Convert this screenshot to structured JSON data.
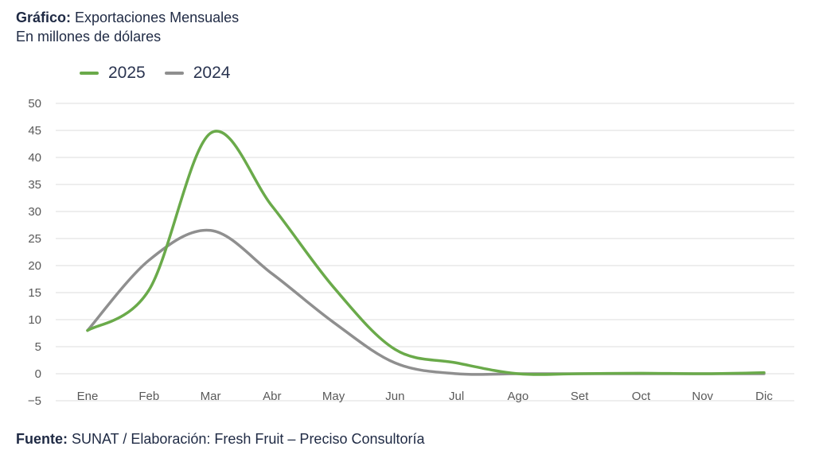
{
  "header": {
    "title_bold": "Gráfico:",
    "title_rest": " Exportaciones Mensuales",
    "subtitle": "En millones de dólares"
  },
  "footer": {
    "label_bold": "Fuente:",
    "text": " SUNAT / Elaboración: Fresh Fruit – Preciso Consultoría"
  },
  "chart_data": {
    "type": "line",
    "title": "Exportaciones Mensuales",
    "subtitle": "En millones de dólares",
    "categories": [
      "Ene",
      "Feb",
      "Mar",
      "Abr",
      "May",
      "Jun",
      "Jul",
      "Ago",
      "Set",
      "Oct",
      "Nov",
      "Dic"
    ],
    "series": [
      {
        "name": "2025",
        "color": "#6aaa4a",
        "values": [
          8,
          15.5,
          44.5,
          31,
          16,
          4.5,
          2,
          0,
          0,
          0.1,
          0,
          0.2
        ]
      },
      {
        "name": "2024",
        "color": "#8f8f8f",
        "values": [
          8,
          21,
          26.5,
          18.5,
          9.5,
          2,
          0,
          0,
          0,
          0,
          0,
          0
        ]
      }
    ],
    "yticks": [
      "50",
      "45",
      "40",
      "35",
      "30",
      "25",
      "20",
      "15",
      "10",
      "5",
      "0",
      "−5"
    ],
    "ylim": [
      -5,
      50
    ],
    "grid": true,
    "legend": "top-left",
    "smooth": true
  }
}
